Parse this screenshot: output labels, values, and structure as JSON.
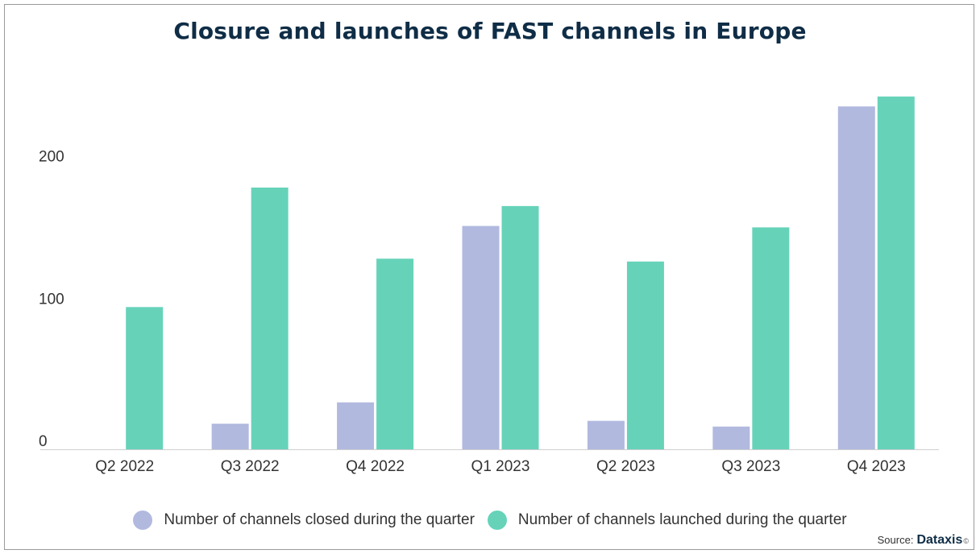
{
  "chart_data": {
    "type": "bar",
    "title": "Closure and launches of FAST channels in Europe",
    "categories": [
      "Q2 2022",
      "Q3 2022",
      "Q4 2022",
      "Q1 2023",
      "Q2 2023",
      "Q3 2023",
      "Q4 2023"
    ],
    "series": [
      {
        "name": "Number of channels closed during the quarter",
        "color": "#b1b9df",
        "values": [
          0,
          18,
          33,
          157,
          20,
          16,
          241
        ]
      },
      {
        "name": "Number of channels launched during the quarter",
        "color": "#66d3b9",
        "values": [
          100,
          184,
          134,
          171,
          132,
          156,
          248
        ]
      }
    ],
    "y_ticks": [
      0,
      100,
      200
    ],
    "ylim": [
      0,
      253
    ],
    "xlabel": "",
    "ylabel": "",
    "grid": false,
    "legend_position": "bottom"
  },
  "source": {
    "label": "Source:",
    "brand": "Dataxis",
    "mark": "©"
  }
}
